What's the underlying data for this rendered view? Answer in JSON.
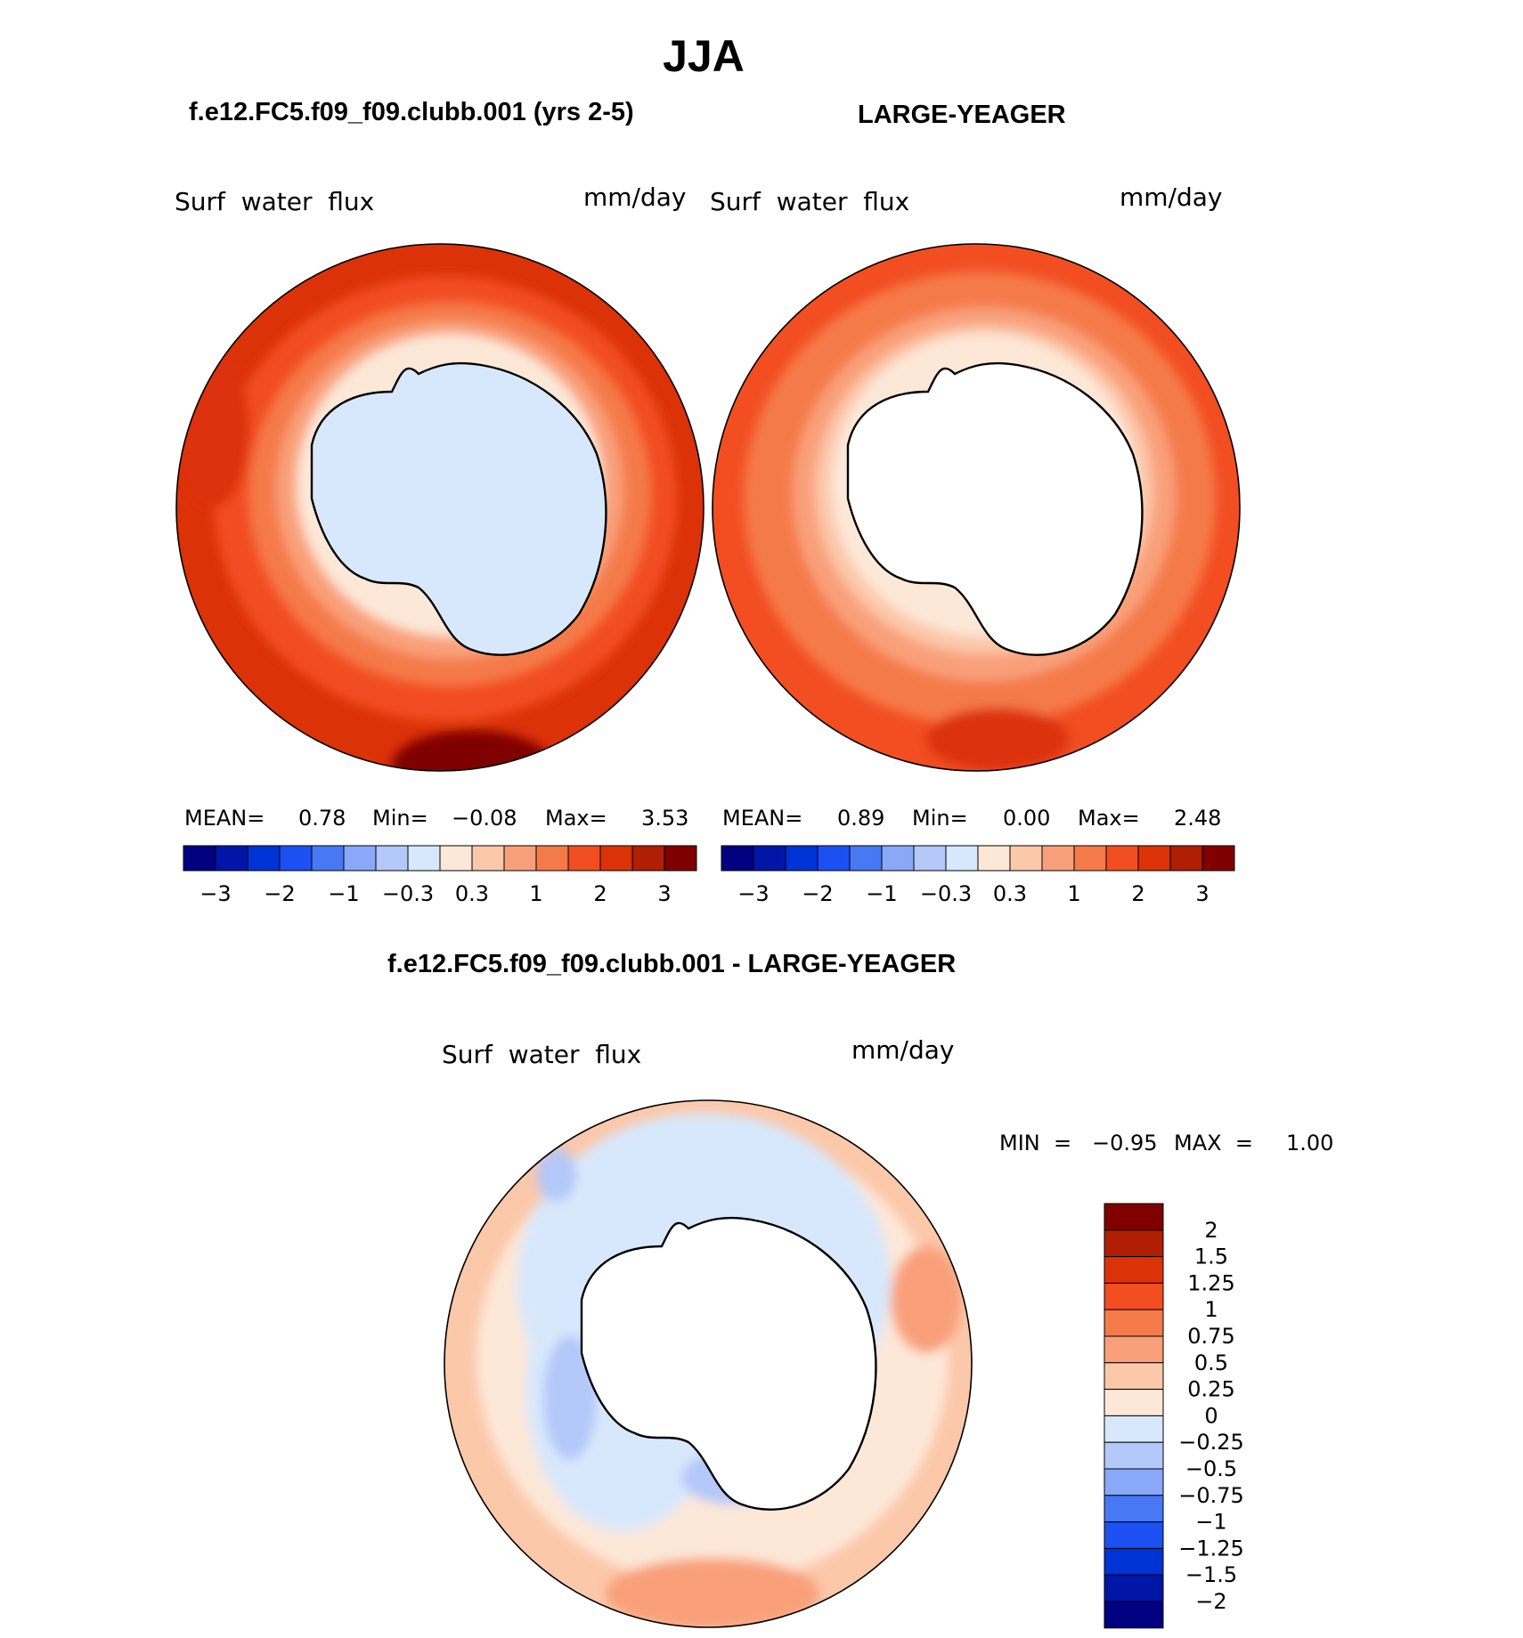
{
  "season_title": "JJA",
  "panels": {
    "left": {
      "case_title": "f.e12.FC5.f09_f09.clubb.001 (yrs 2-5)",
      "variable": "Surf  water  flux",
      "units": "mm/day",
      "stats": {
        "mean_label": "MEAN=",
        "mean_value": "0.78",
        "min_label": "Min=",
        "min_value": "−0.08",
        "max_label": "Max=",
        "max_value": "3.53"
      }
    },
    "right": {
      "case_title": "LARGE-YEAGER",
      "variable": "Surf  water  flux",
      "units": "mm/day",
      "stats": {
        "mean_label": "MEAN=",
        "mean_value": "0.89",
        "min_label": "Min=",
        "min_value": "0.00",
        "max_label": "Max=",
        "max_value": "2.48"
      }
    },
    "diff": {
      "case_title": "f.e12.FC5.f09_f09.clubb.001 - LARGE-YEAGER",
      "variable": "Surf  water  flux",
      "units": "mm/day",
      "stats": {
        "min_label": "MIN  =",
        "min_value": "−0.95",
        "max_label": "MAX  =",
        "max_value": "1.00"
      }
    }
  },
  "colorbar_main": {
    "colors": [
      "#000080",
      "#0016a8",
      "#0033d6",
      "#1c50f2",
      "#4878f4",
      "#8aa8f8",
      "#b4c8fa",
      "#d8e8fc",
      "#fde8d8",
      "#fcc8aa",
      "#f9a07a",
      "#f57a4a",
      "#f24e22",
      "#dc3208",
      "#b01e04",
      "#800000"
    ],
    "tick_labels": [
      "−3",
      "−2",
      "−1",
      "−0.3",
      "0.3",
      "1",
      "2",
      "3"
    ]
  },
  "colorbar_diff": {
    "colors_top_to_bottom": [
      "#800000",
      "#b01e04",
      "#dc3208",
      "#f24e22",
      "#f57a4a",
      "#f9a07a",
      "#fcc8aa",
      "#fde8d8",
      "#d8e8fc",
      "#b4c8fa",
      "#8aa8f8",
      "#4878f4",
      "#1c50f2",
      "#0033d6",
      "#0016a8",
      "#000080"
    ],
    "tick_labels_top_to_bottom": [
      "2",
      "1.5",
      "1.25",
      "1",
      "0.75",
      "0.5",
      "0.25",
      "0",
      "−0.25",
      "−0.5",
      "−0.75",
      "−1",
      "−1.25",
      "−1.5",
      "−2"
    ]
  },
  "map_colors": {
    "high": "#dc3208",
    "mid_high": "#f24e22",
    "mid": "#f57a4a",
    "low": "#f9a07a",
    "lower": "#fcc8aa",
    "lowest": "#fde8d8",
    "land_left": "#d8e8fc",
    "land_blank": "#ffffff",
    "neg_1": "#d8e8fc",
    "neg_2": "#b4c8fa",
    "neg_3": "#8aa8f8",
    "deep": "#800000"
  }
}
